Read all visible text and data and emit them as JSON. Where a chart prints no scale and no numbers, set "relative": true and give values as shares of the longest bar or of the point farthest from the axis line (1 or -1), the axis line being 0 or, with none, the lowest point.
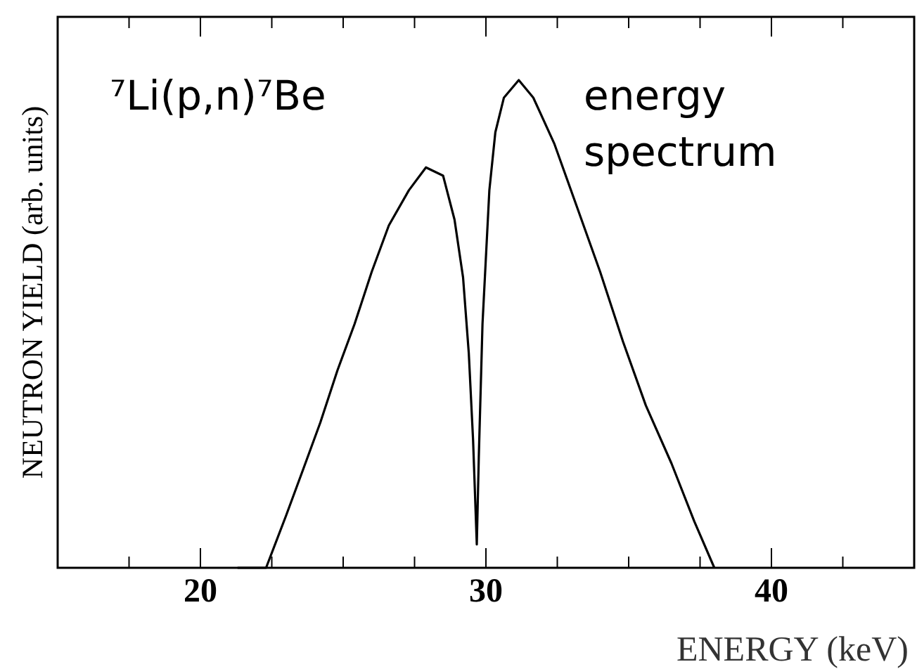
{
  "chart_data": {
    "type": "line",
    "relative": true,
    "xlabel": "ENERGY (keV)",
    "ylabel": "NEUTRON YIELD (arb. units)",
    "annotations": [
      "⁷Li(p,n)⁷Be",
      "energy\nspectrum"
    ],
    "xlim": [
      15,
      45
    ],
    "xticks": [
      {
        "value": 17.5,
        "label": null
      },
      20,
      {
        "value": 22.5,
        "label": null
      },
      {
        "value": 25,
        "label": null
      },
      {
        "value": 27.5,
        "label": null
      },
      30,
      {
        "value": 32.5,
        "label": null
      },
      {
        "value": 35,
        "label": null
      },
      {
        "value": 37.5,
        "label": null
      },
      40,
      {
        "value": 42.5,
        "label": null
      }
    ],
    "series": [
      {
        "color": "#000000",
        "x": [
          21.3,
          22.3,
          23.0,
          23.6,
          24.2,
          24.8,
          25.4,
          26.0,
          26.6,
          27.3,
          27.9,
          28.5,
          28.9,
          29.2,
          29.4,
          29.55,
          29.68,
          29.75,
          29.88,
          30.12,
          30.33,
          30.63,
          31.15,
          31.66,
          32.4,
          33.2,
          34.0,
          34.8,
          35.6,
          36.5,
          37.3,
          38.0
        ],
        "values": [
          0,
          0,
          0.107,
          0.202,
          0.298,
          0.405,
          0.5,
          0.607,
          0.702,
          0.774,
          0.821,
          0.804,
          0.714,
          0.595,
          0.44,
          0.262,
          0.048,
          0.226,
          0.5,
          0.774,
          0.893,
          0.964,
          1,
          0.964,
          0.869,
          0.738,
          0.607,
          0.464,
          0.333,
          0.214,
          0.095,
          0
        ]
      }
    ],
    "marker": "none",
    "line_style": "solid"
  }
}
